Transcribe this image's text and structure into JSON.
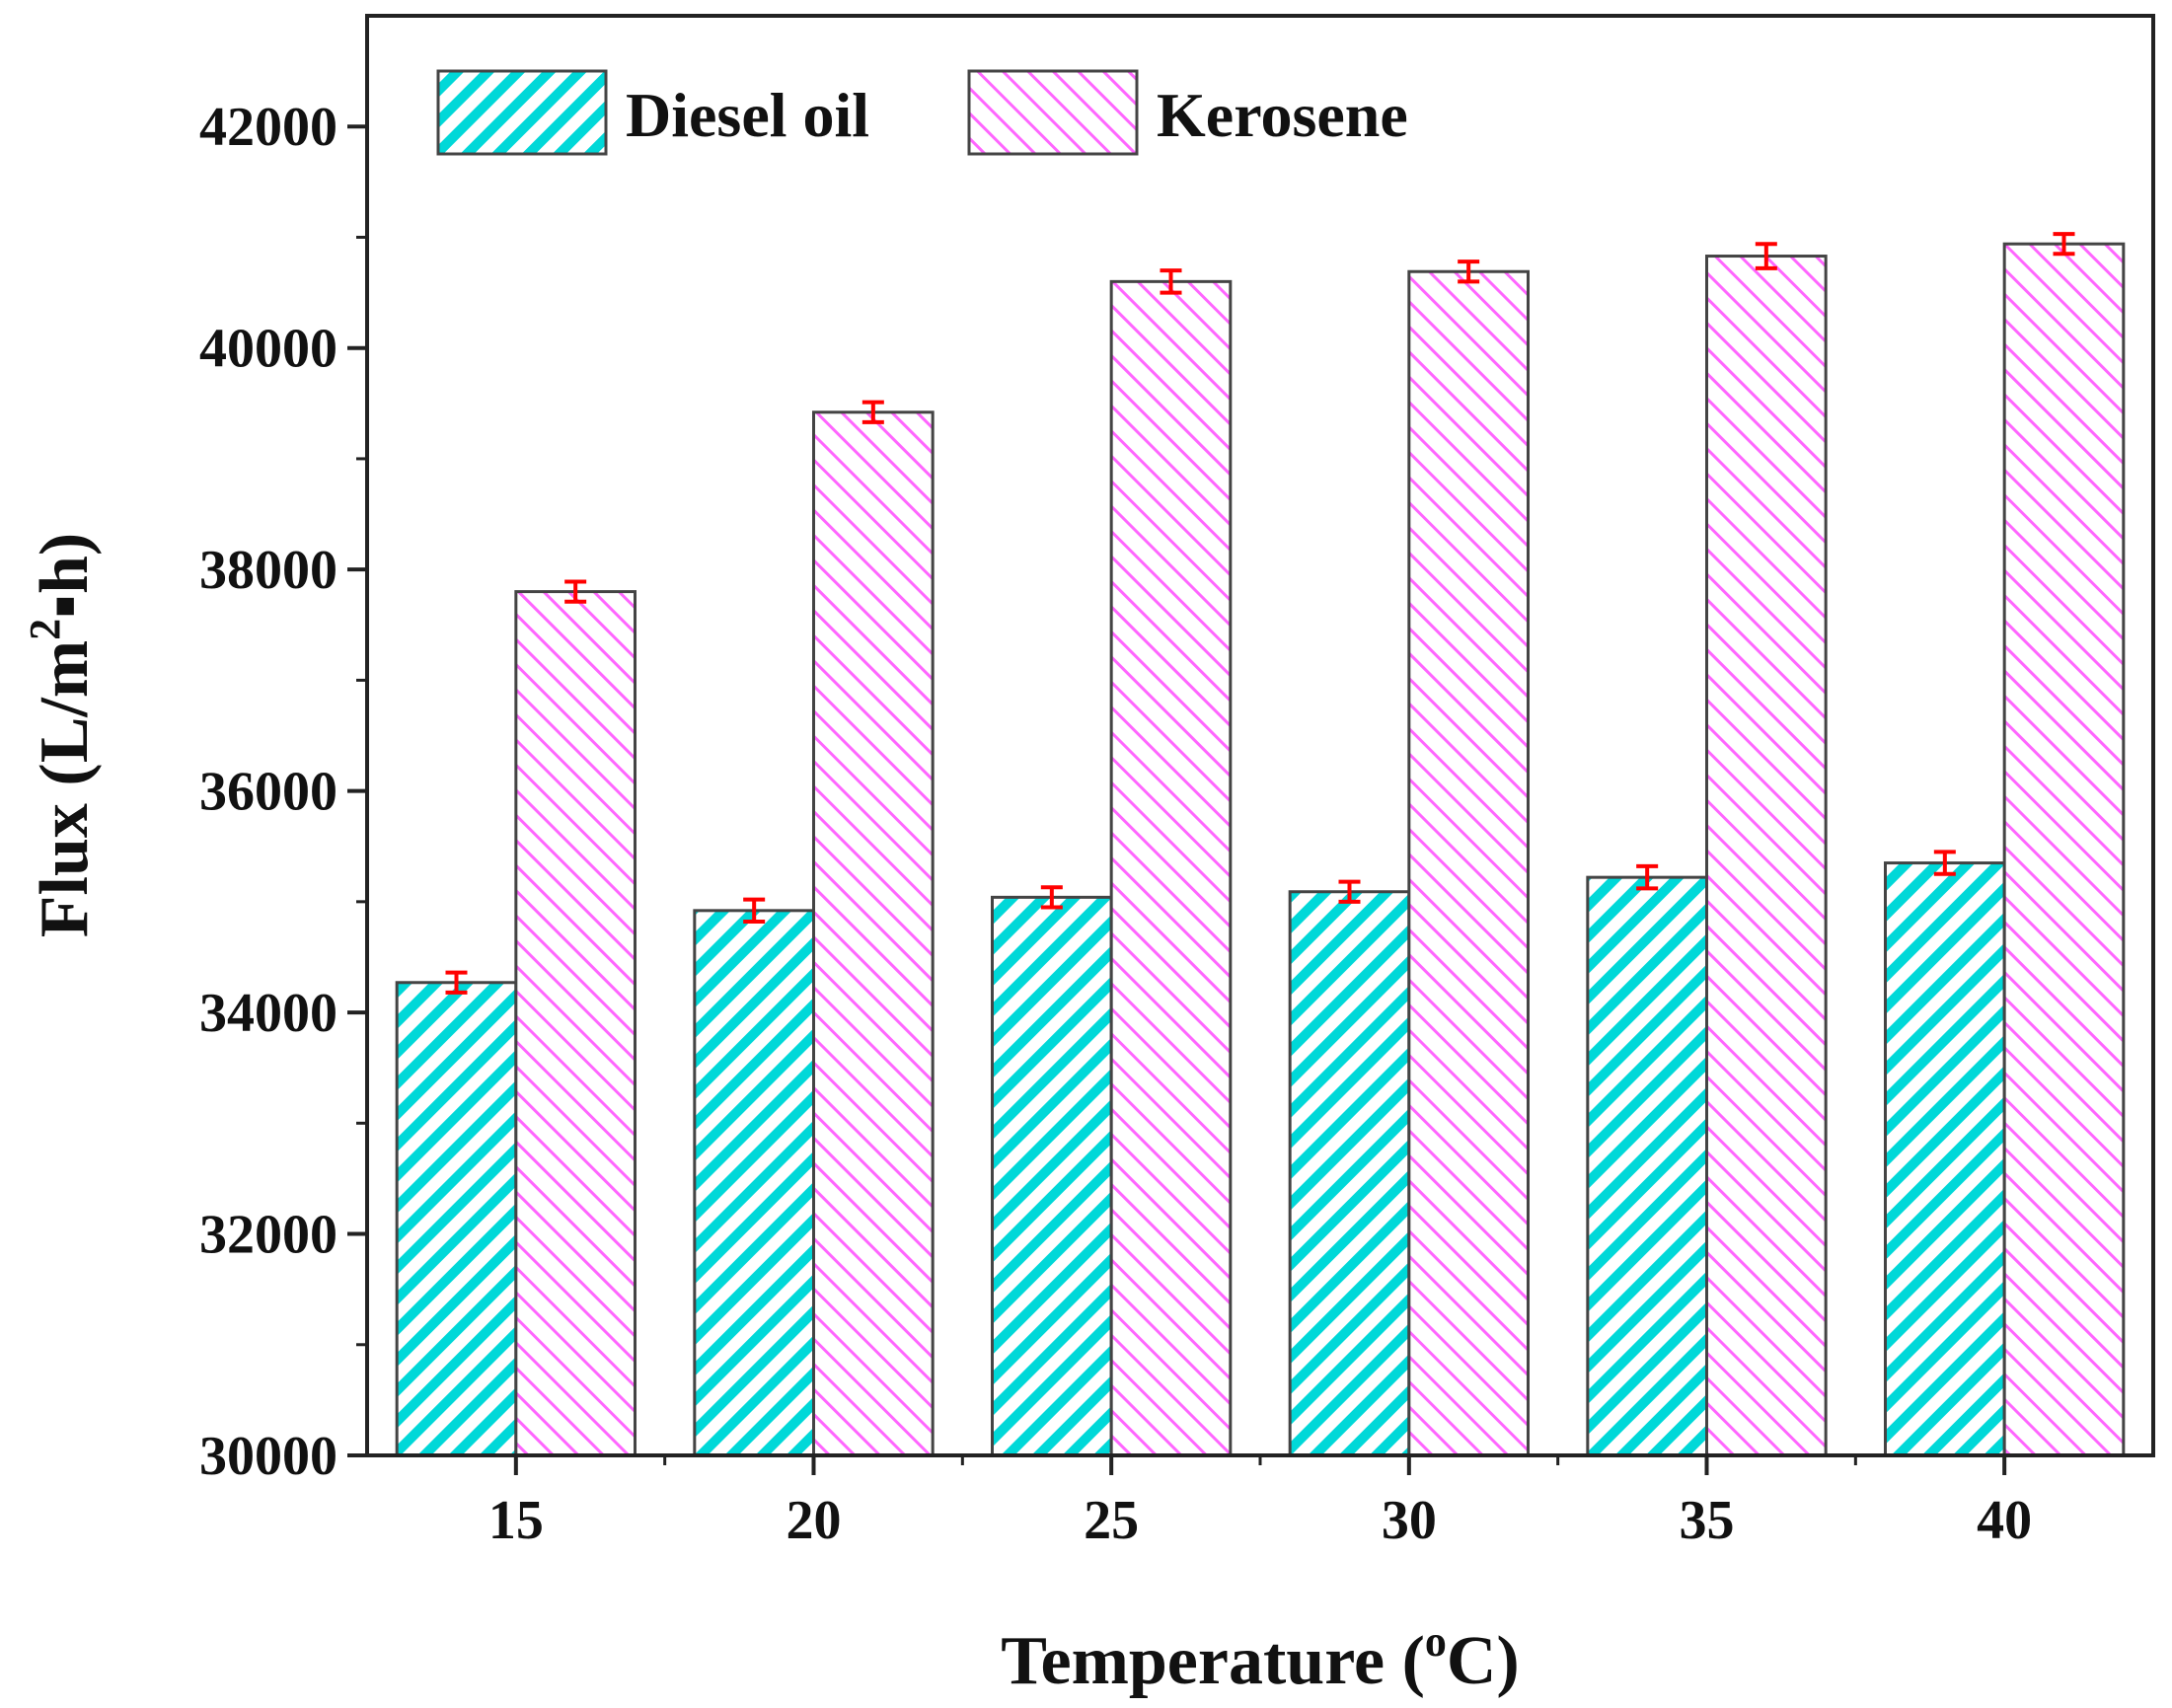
{
  "chart_data": {
    "type": "bar",
    "title": "",
    "xlabel": "Temperature (",
    "xlabel_sup": "o",
    "xlabel_tail": "C)",
    "ylabel": "Flux (L/m",
    "ylabel_sup": "2",
    "ylabel_tail": "▪h)",
    "categories": [
      "15",
      "20",
      "25",
      "30",
      "35",
      "40"
    ],
    "ylim": [
      30000,
      43000
    ],
    "yticks": [
      "30000",
      "32000",
      "34000",
      "36000",
      "38000",
      "40000",
      "42000"
    ],
    "ytick_values": [
      30000,
      32000,
      34000,
      36000,
      38000,
      40000,
      42000
    ],
    "minor_tick_step": 1000,
    "grid": false,
    "legend_position": "top-left",
    "series": [
      {
        "name": "Diesel oil",
        "color": "#00d8d8",
        "pattern": "diagonal-hatch-up",
        "values": [
          34270,
          34920,
          35040,
          35090,
          35220,
          35350
        ],
        "errors": [
          90,
          100,
          90,
          90,
          100,
          100
        ]
      },
      {
        "name": "Kerosene",
        "color": "#ff66ff",
        "pattern": "diagonal-hatch-down",
        "values": [
          37800,
          39420,
          40600,
          40690,
          40830,
          40940
        ],
        "errors": [
          90,
          90,
          100,
          90,
          110,
          90
        ]
      }
    ],
    "error_bar_color": "#ff0000"
  }
}
